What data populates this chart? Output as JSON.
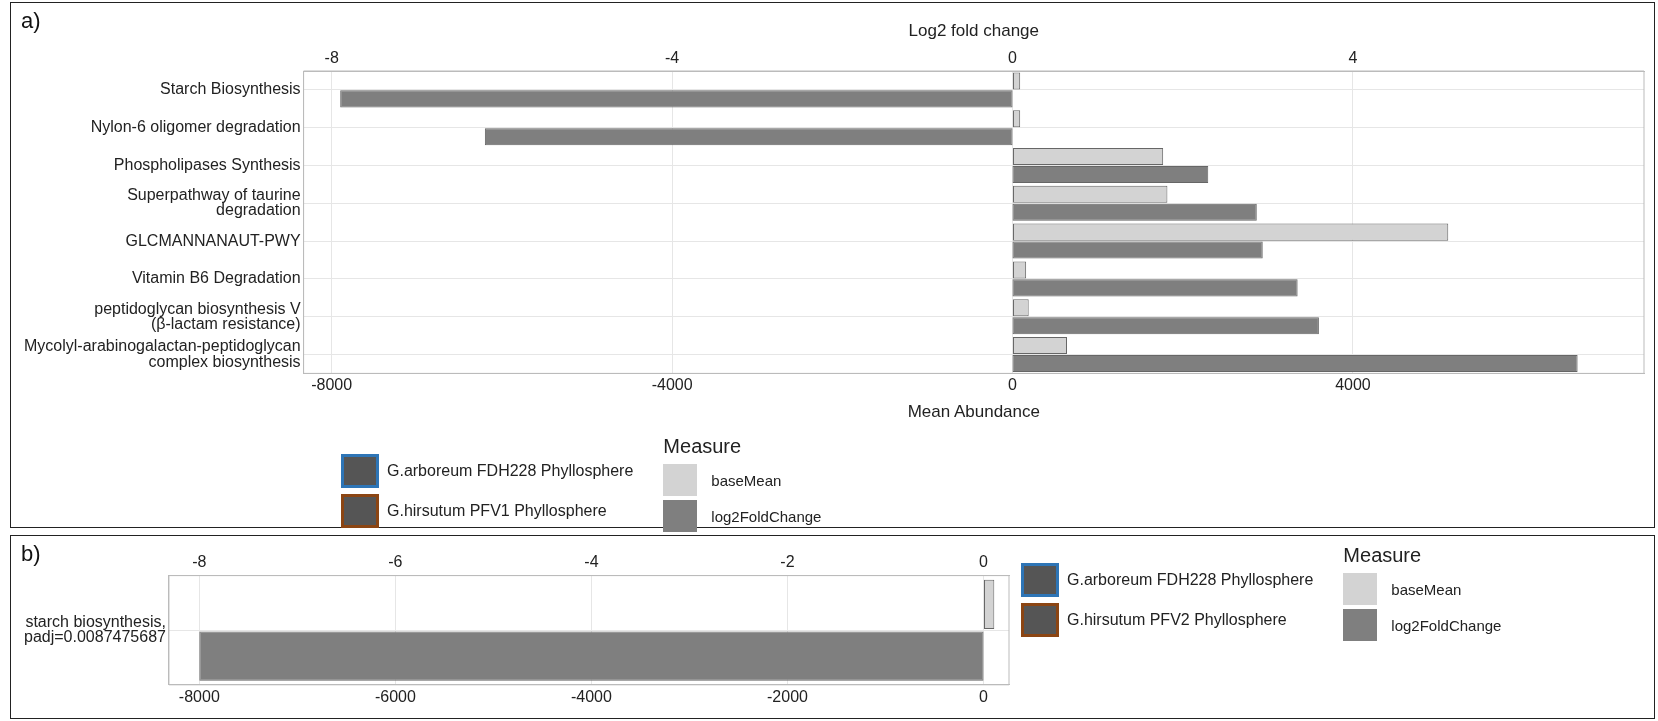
{
  "chart_data": [
    {
      "type": "bar",
      "orientation": "horizontal",
      "title": "a)",
      "xlabel": "Mean Abundance",
      "x2label": "Log2 fold change",
      "legend_title": "Measure",
      "legend": "bottom",
      "grid": true,
      "categories": [
        "Starch Biosynthesis",
        "Nylon-6 oligomer degradation",
        "Phospholipases Synthesis",
        "Superpathway of taurine degradation",
        "GLCMANNANAUT-PWY",
        "Vitamin B6 Degradation",
        "peptidoglycan biosynthesis V (β-lactam resistance)",
        "Mycolyl-arabinogalactan-peptidoglycan complex biosynthesis"
      ],
      "series": [
        {
          "name": "G.arboreum FDH228 Phyllosphere",
          "color": "#2e75b6",
          "values": [
            null,
            null,
            null,
            null,
            null,
            null,
            null,
            null
          ]
        },
        {
          "name": "G.hirsutum PFV1 Phyllosphere",
          "color": "#8b4513",
          "values": [
            null,
            null,
            null,
            null,
            null,
            null,
            null,
            null
          ]
        },
        {
          "name": "baseMean",
          "color": "#d3d3d3",
          "values": [
            90,
            90,
            1770,
            1820,
            5120,
            160,
            190,
            640
          ]
        },
        {
          "name": "log2FoldChange",
          "color": "#7f7f7f",
          "axis": "x2",
          "values": [
            -7.9,
            -6.2,
            2.3,
            2.87,
            2.94,
            3.35,
            3.6,
            6.64
          ]
        }
      ],
      "xlim": [
        -8330,
        7420
      ],
      "xticks": [
        -8000,
        -4000,
        0,
        4000
      ],
      "x2lim": [
        -8.33,
        7.42
      ],
      "x2ticks": [
        -8,
        -4,
        0,
        4
      ]
    },
    {
      "type": "bar",
      "orientation": "horizontal",
      "title": "b)",
      "legend_title": "Measure",
      "legend": "right",
      "grid": true,
      "categories": [
        "starch biosynthesis, padj=0.0087475687"
      ],
      "series": [
        {
          "name": "G.arboreum FDH228 Phyllosphere",
          "color": "#2e75b6",
          "values": [
            null
          ]
        },
        {
          "name": "G.hirsutum PFV2 Phyllosphere",
          "color": "#8b4513",
          "values": [
            null
          ]
        },
        {
          "name": "baseMean",
          "color": "#d3d3d3",
          "values": [
            110
          ]
        },
        {
          "name": "log2FoldChange",
          "color": "#7f7f7f",
          "axis": "x2",
          "values": [
            -8.0
          ]
        }
      ],
      "xlim": [
        -8310,
        260
      ],
      "xticks": [
        -8000,
        -6000,
        -4000,
        -2000,
        0
      ],
      "x2lim": [
        -8.31,
        0.26
      ],
      "x2ticks": [
        -8,
        -6,
        -4,
        -2,
        0
      ]
    }
  ]
}
